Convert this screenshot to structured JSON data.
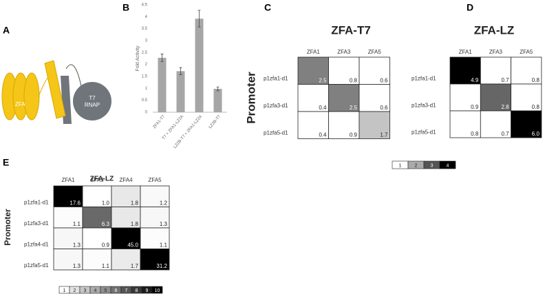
{
  "panel_labels": [
    "A",
    "B",
    "C",
    "D",
    "E"
  ],
  "diagram": {
    "zfa_label": "ZFA",
    "rnap_label": [
      "T7",
      "RNAP"
    ]
  },
  "chart_data": [
    {
      "type": "bar",
      "ylabel": "Fold Activity",
      "categories": [
        "ZFA1-T7",
        "T7 + ZFA1-LZ2A",
        "LZ2B-T7 + ZFA1-LZ2A",
        "LZ2B-T7"
      ],
      "values": [
        2.28,
        1.72,
        3.92,
        0.98
      ],
      "errors": [
        0.16,
        0.15,
        0.35,
        0.08
      ],
      "color": "#a6a6a6",
      "ylim": [
        0,
        4.5
      ],
      "yticks": [
        0,
        0.5,
        1,
        1.5,
        2,
        2.5,
        3,
        3.5,
        4,
        4.5
      ]
    },
    {
      "type": "heatmap",
      "title": "ZFA-T7",
      "ylabel": "Promoter",
      "columns": [
        "ZFA1",
        "ZFA3",
        "ZFA5"
      ],
      "rows": [
        "p1zfa1-d1",
        "p1zfa3-d1",
        "p1zfa5-d1"
      ],
      "values": [
        [
          2.5,
          0.8,
          0.6
        ],
        [
          0.4,
          2.5,
          0.6
        ],
        [
          0.4,
          0.9,
          1.7
        ]
      ],
      "value_labels": [
        [
          "2.5",
          "0.8",
          "0.6"
        ],
        [
          "0.4",
          "2.5",
          "0.6"
        ],
        [
          "0.4",
          "0.9",
          "1.7"
        ]
      ],
      "colorbar": [
        1,
        2,
        3,
        4
      ]
    },
    {
      "type": "heatmap",
      "title": "ZFA-LZ",
      "columns": [
        "ZFA1",
        "ZFA3",
        "ZFA5"
      ],
      "rows": [
        "p1zfa1-d1",
        "p1zfa3-d1",
        "p1zfa5-d1"
      ],
      "values": [
        [
          4.9,
          0.7,
          0.8
        ],
        [
          0.9,
          2.8,
          0.8
        ],
        [
          0.8,
          0.7,
          6.0
        ]
      ],
      "value_labels": [
        [
          "4.9",
          "0.7",
          "0.8"
        ],
        [
          "0.9",
          "2.8",
          "0.8"
        ],
        [
          "0.8",
          "0.7",
          "6.0"
        ]
      ],
      "colorbar": [
        1,
        2,
        3,
        4
      ]
    },
    {
      "type": "heatmap",
      "title": "ZFA-LZ",
      "ylabel": "Promoter",
      "columns": [
        "ZFA1",
        "ZFA3",
        "ZFA4",
        "ZFA5"
      ],
      "rows": [
        "p1zfa1-d1",
        "p1zfa3-d1",
        "p1zfa4-d1",
        "p1zfa5-d1"
      ],
      "values": [
        [
          17.6,
          1.0,
          1.8,
          1.2
        ],
        [
          1.1,
          6.3,
          1.8,
          1.3
        ],
        [
          1.3,
          0.9,
          45.0,
          1.1
        ],
        [
          1.3,
          1.1,
          1.7,
          31.2
        ]
      ],
      "value_labels": [
        [
          "17.6",
          "1.0",
          "1.8",
          "1.2"
        ],
        [
          "1.1",
          "6.3",
          "1.8",
          "1.3"
        ],
        [
          "1.3",
          "0.9",
          "45.0",
          "1.1"
        ],
        [
          "1.3",
          "1.1",
          "1.7",
          "31.2"
        ]
      ],
      "colorbar": [
        1,
        2,
        3,
        4,
        5,
        6,
        7,
        8,
        9,
        10
      ]
    }
  ]
}
